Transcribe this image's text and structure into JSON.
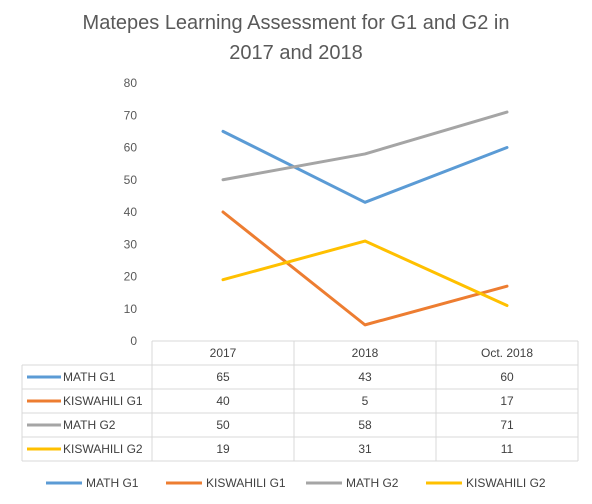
{
  "chart_data": {
    "type": "line",
    "title": "Matepes Learning Assessment for G1 and G2 in 2017 and 2018",
    "title_lines": [
      "Matepes Learning Assessment for G1 and G2 in",
      "2017 and 2018"
    ],
    "categories": [
      "2017",
      "2018",
      "Oct. 2018"
    ],
    "ylim": [
      0,
      80
    ],
    "yticks": [
      0,
      10,
      20,
      30,
      40,
      50,
      60,
      70,
      80
    ],
    "grid": false,
    "legend_position": "bottom",
    "data_table": true,
    "series": [
      {
        "name": "MATH G1",
        "values": [
          65,
          43,
          60
        ],
        "color": "#5B9BD5"
      },
      {
        "name": "KISWAHILI G1",
        "values": [
          40,
          5,
          17
        ],
        "color": "#ED7D31"
      },
      {
        "name": "MATH G2",
        "values": [
          50,
          58,
          71
        ],
        "color": "#A5A5A5"
      },
      {
        "name": "KISWAHILI G2",
        "values": [
          19,
          31,
          11
        ],
        "color": "#FFC000"
      }
    ]
  }
}
